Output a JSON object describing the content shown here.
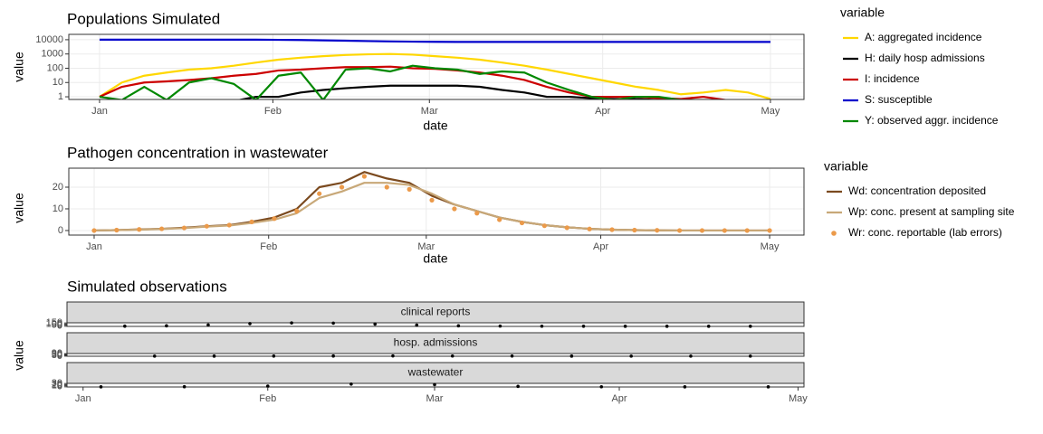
{
  "chart_data": [
    {
      "type": "line",
      "title": "Populations Simulated",
      "x_label": "date",
      "y_label": "value",
      "log_y": true,
      "grid": true,
      "legend_title": "variable",
      "legend_position": "right",
      "xlim": [
        -5.5,
        126
      ],
      "xticks": [
        {
          "value": 0,
          "label": "Jan"
        },
        {
          "value": 31,
          "label": "Feb"
        },
        {
          "value": 59,
          "label": "Mar"
        },
        {
          "value": 90,
          "label": "Apr"
        },
        {
          "value": 120,
          "label": "May"
        }
      ],
      "ylim": [
        0.65,
        23700
      ],
      "yticks": [
        1,
        10,
        100,
        1000,
        10000
      ],
      "x": [
        0,
        4,
        8,
        12,
        16,
        20,
        24,
        28,
        32,
        36,
        40,
        44,
        48,
        52,
        56,
        60,
        64,
        68,
        72,
        76,
        80,
        84,
        88,
        92,
        96,
        100,
        104,
        108,
        112,
        116,
        120
      ],
      "series": [
        {
          "name": "A: aggregated incidence",
          "color": "#ffd700",
          "style": "line",
          "values": [
            1,
            10,
            30,
            50,
            80,
            100,
            150,
            250,
            400,
            550,
            700,
            850,
            950,
            1000,
            900,
            700,
            550,
            400,
            250,
            150,
            80,
            40,
            20,
            10,
            5,
            3,
            1.5,
            2,
            3,
            2,
            0.7
          ]
        },
        {
          "name": "H: daily hosp admissions",
          "color": "#000000",
          "style": "line",
          "values": [
            0.5,
            0.5,
            0.5,
            0.5,
            0.5,
            0.5,
            0.5,
            1,
            1,
            2,
            3,
            4,
            5,
            6,
            6,
            6,
            6,
            5,
            3,
            2,
            1,
            1,
            0.8,
            0.7,
            0.7,
            0.6,
            0.6,
            0.6,
            0.6,
            0.6,
            0.6
          ]
        },
        {
          "name": "I: incidence",
          "color": "#cc0000",
          "style": "line",
          "values": [
            1,
            5,
            10,
            12,
            15,
            20,
            30,
            40,
            70,
            80,
            100,
            120,
            120,
            130,
            100,
            90,
            70,
            50,
            30,
            15,
            5,
            2,
            1,
            1,
            1,
            0.8,
            0.7,
            1,
            0.6,
            0.6,
            0.6
          ]
        },
        {
          "name": "S: susceptible",
          "color": "#0000cc",
          "style": "line",
          "values": [
            10000,
            10000,
            10000,
            10000,
            10000,
            10000,
            10000,
            10000,
            9800,
            9500,
            9000,
            8500,
            8000,
            7600,
            7300,
            7100,
            7000,
            7000,
            7000,
            7000,
            7000,
            7000,
            7000,
            7000,
            7000,
            7000,
            7000,
            7000,
            7000,
            7000,
            7000
          ]
        },
        {
          "name": "Y: observed aggr. incidence",
          "color": "#008800",
          "style": "line",
          "values": [
            1,
            0.6,
            5,
            0.6,
            10,
            20,
            8,
            0.6,
            30,
            50,
            0.6,
            80,
            100,
            60,
            150,
            100,
            80,
            40,
            60,
            50,
            10,
            3,
            1,
            0.6,
            1,
            1,
            0.6,
            0.6,
            0.6,
            0.6,
            0.6
          ]
        }
      ]
    },
    {
      "type": "line",
      "title": "Pathogen concentration in wastewater",
      "x_label": "date",
      "y_label": "value",
      "log_y": false,
      "grid": true,
      "legend_title": "variable",
      "legend_position": "right",
      "xlim": [
        -4.5,
        126.1
      ],
      "xticks": [
        {
          "value": 0,
          "label": "Jan"
        },
        {
          "value": 31,
          "label": "Feb"
        },
        {
          "value": 59,
          "label": "Mar"
        },
        {
          "value": 90,
          "label": "Apr"
        },
        {
          "value": 120,
          "label": "May"
        }
      ],
      "ylim": [
        -2.1,
        28.75
      ],
      "yticks": [
        0,
        10,
        20
      ],
      "x": [
        0,
        4,
        8,
        12,
        16,
        20,
        24,
        28,
        32,
        36,
        40,
        44,
        48,
        52,
        56,
        60,
        64,
        68,
        72,
        76,
        80,
        84,
        88,
        92,
        96,
        100,
        104,
        108,
        112,
        116,
        120
      ],
      "series": [
        {
          "name": "Wd: concentration deposited",
          "color": "#7b4a1f",
          "style": "line",
          "values": [
            0,
            0.2,
            0.5,
            0.8,
            1.3,
            2,
            2.5,
            4,
            6,
            10,
            20,
            22,
            27,
            24,
            22,
            16,
            12,
            9,
            6,
            4,
            2.5,
            1.5,
            0.8,
            0.4,
            0.2,
            0.1,
            0,
            0,
            0,
            0,
            0
          ]
        },
        {
          "name": "Wp: conc. present at sampling site",
          "color": "#c8a878",
          "style": "line",
          "values": [
            0,
            0.2,
            0.4,
            0.7,
            1.1,
            1.8,
            2.3,
            3.5,
            5,
            8,
            15,
            18,
            22,
            22,
            21,
            17,
            12,
            9,
            6,
            4,
            2.5,
            1.5,
            0.8,
            0.4,
            0.2,
            0.1,
            0,
            0,
            0,
            0,
            0
          ]
        },
        {
          "name": "Wr: conc. reportable (lab errors)",
          "color": "#eb9a4a",
          "style": "point",
          "values": [
            0,
            0.2,
            0.5,
            0.8,
            1.2,
            2,
            2.5,
            4,
            5.5,
            9,
            17,
            20,
            25,
            20,
            19,
            14,
            10,
            8,
            5,
            3.5,
            2.2,
            1.3,
            0.7,
            0.4,
            0.2,
            0.1,
            0,
            0,
            0,
            0,
            0
          ]
        }
      ]
    },
    {
      "type": "facet-scatter",
      "title": "Simulated observations",
      "y_label": "value",
      "color": "#000000",
      "xlim": [
        -2.7,
        121
      ],
      "xticks": [
        {
          "value": 0,
          "label": "Jan"
        },
        {
          "value": 31,
          "label": "Feb"
        },
        {
          "value": 59,
          "label": "Mar"
        },
        {
          "value": 90,
          "label": "Apr"
        },
        {
          "value": 120,
          "label": "May"
        }
      ],
      "facets": [
        {
          "strip": "clinical reports",
          "ylim": [
            -7.5,
            157.5
          ],
          "yticks": [
            0,
            50,
            100,
            150
          ],
          "x": [
            7,
            14,
            21,
            28,
            35,
            42,
            49,
            56,
            63,
            70,
            77,
            84,
            91,
            98,
            105,
            112
          ],
          "values": [
            5,
            20,
            60,
            120,
            150,
            140,
            100,
            50,
            20,
            8,
            3,
            1,
            0,
            0,
            0,
            0
          ]
        },
        {
          "strip": "hosp. admissions",
          "ylim": [
            -4.5,
            94.5
          ],
          "yticks": [
            0,
            30,
            60,
            90
          ],
          "x": [
            12,
            22,
            32,
            42,
            52,
            62,
            72,
            82,
            92,
            102,
            112
          ],
          "values": [
            0,
            1,
            3,
            5,
            6,
            4,
            2,
            1,
            0,
            0,
            0
          ]
        },
        {
          "strip": "wastewater",
          "ylim": [
            -1.5,
            31.5
          ],
          "yticks": [
            0,
            10,
            20,
            30
          ],
          "x": [
            3,
            17,
            31,
            45,
            59,
            73,
            87,
            101,
            115
          ],
          "values": [
            0,
            1,
            6,
            25,
            20,
            4,
            0.5,
            0,
            0
          ]
        }
      ]
    }
  ]
}
